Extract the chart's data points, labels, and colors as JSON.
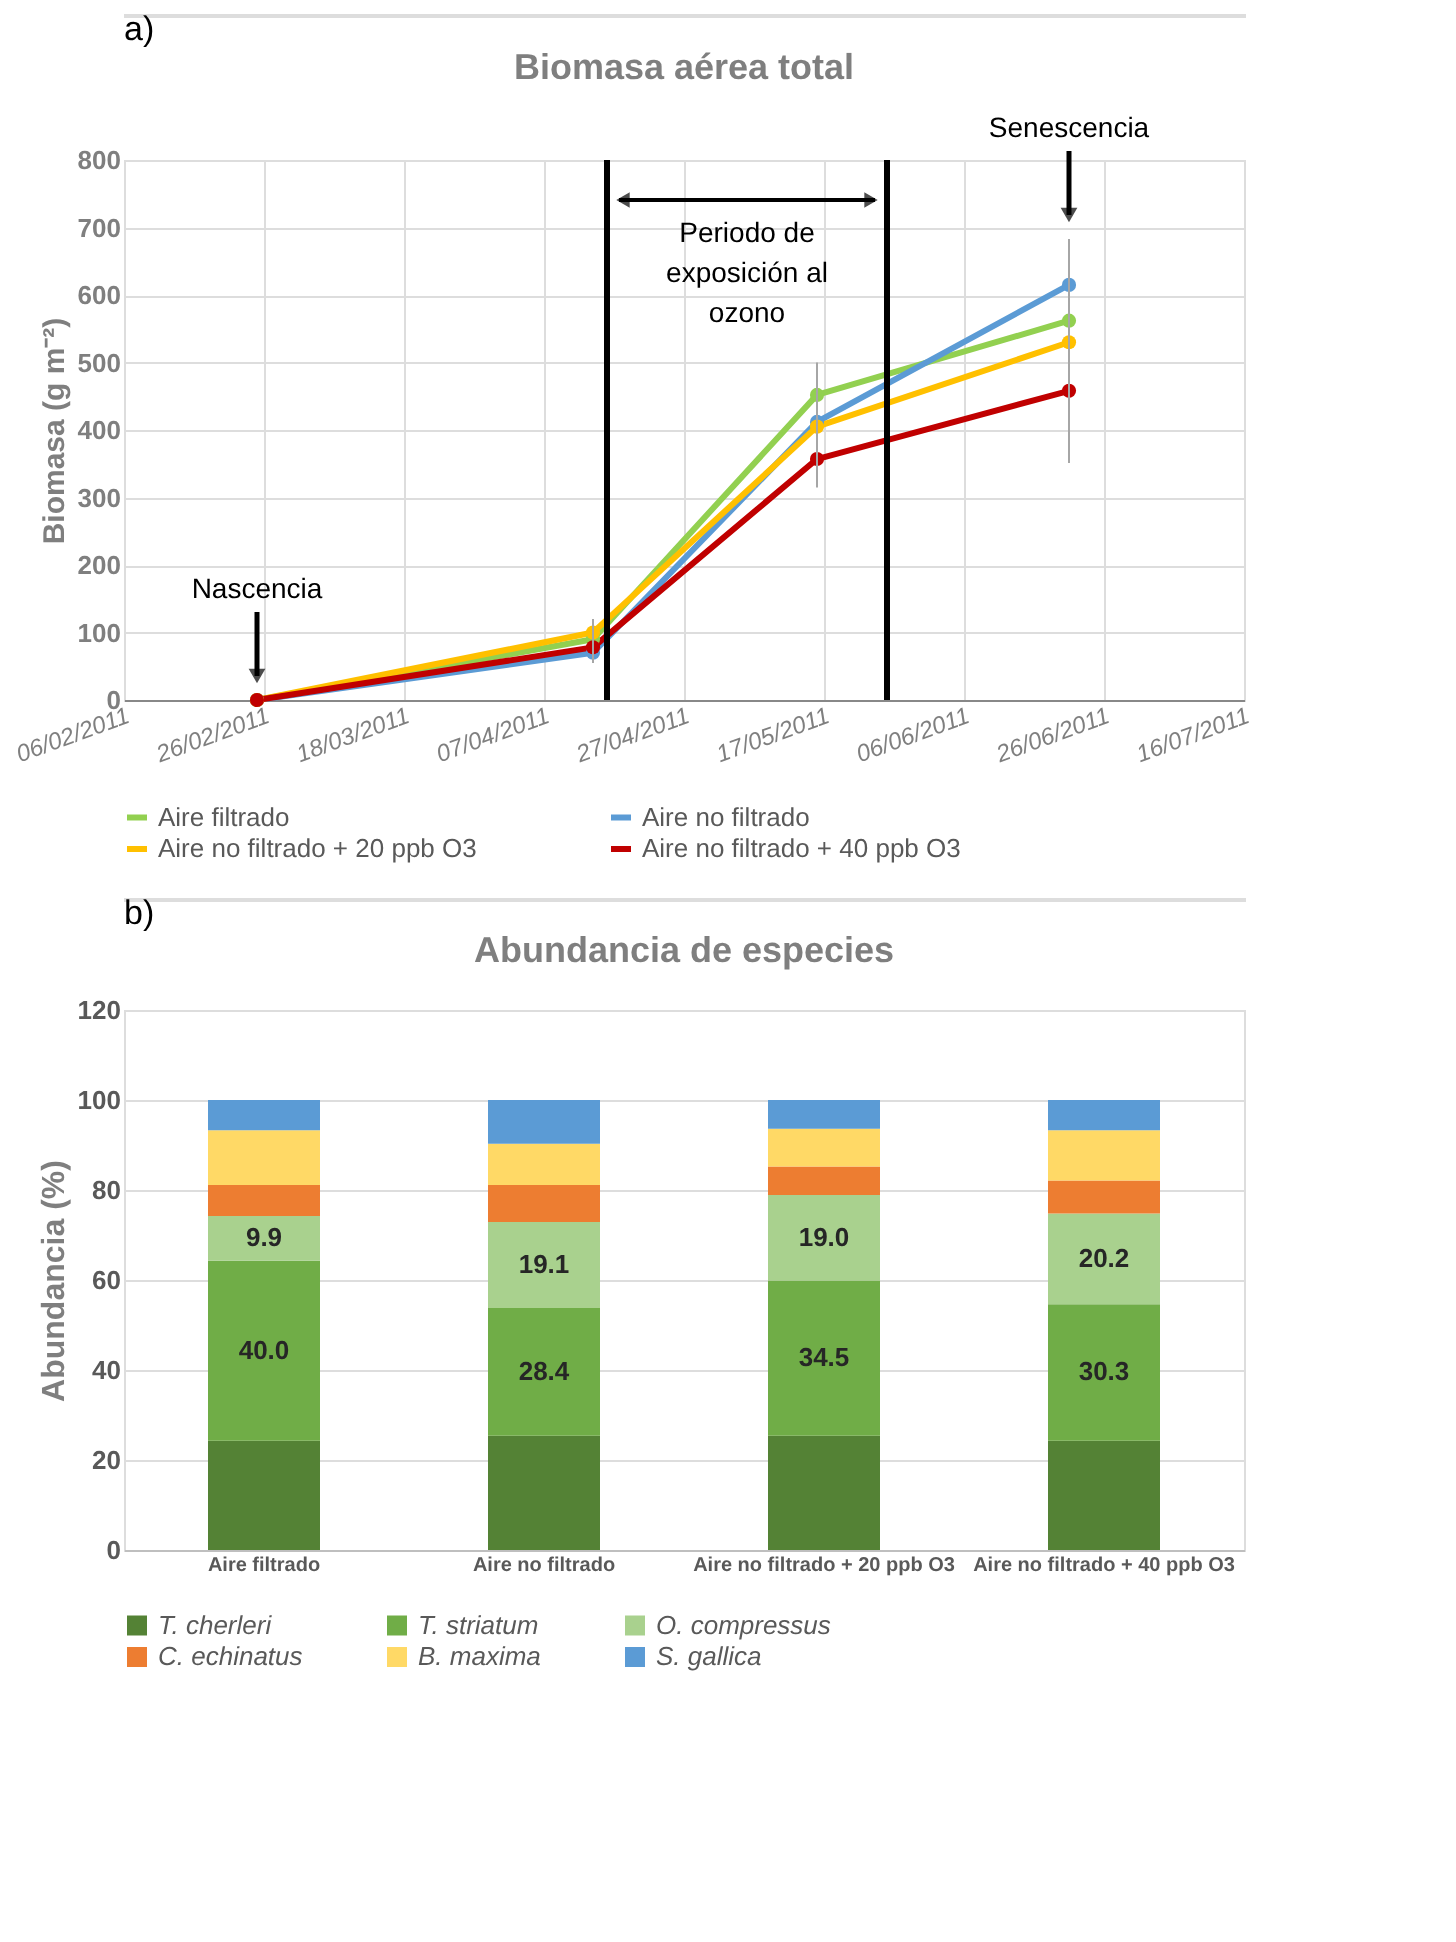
{
  "chart_data": [
    {
      "type": "line",
      "title": "Biomasa aérea total",
      "ylabel": "Biomasa (g m⁻²)",
      "x": [
        "2011-02-25",
        "2011-04-14",
        "2011-05-16",
        "2011-06-21"
      ],
      "series": [
        {
          "name": "Aire filtrado",
          "color": "#92d050",
          "values": [
            0,
            90,
            452,
            562
          ],
          "errors": [
            null,
            20,
            48,
            30
          ]
        },
        {
          "name": "Aire no filtrado",
          "color": "#5b9bd5",
          "values": [
            0,
            70,
            412,
            615
          ],
          "errors": [
            null,
            15,
            40,
            68
          ]
        },
        {
          "name": "Aire no filtrado + 20 ppb O3",
          "color": "#ffc000",
          "values": [
            0,
            100,
            405,
            530
          ],
          "errors": [
            null,
            20,
            35,
            50
          ]
        },
        {
          "name": "Aire no filtrado + 40 ppb O3",
          "color": "#c00000",
          "values": [
            0,
            78,
            357,
            458
          ],
          "errors": [
            null,
            15,
            42,
            107
          ]
        }
      ],
      "xlim": [
        "2011-02-06",
        "2011-07-16"
      ],
      "xticks": [
        {
          "value": "2011-02-06",
          "label": "06/02/2011"
        },
        {
          "value": "2011-02-26",
          "label": "26/02/2011"
        },
        {
          "value": "2011-03-18",
          "label": "18/03/2011"
        },
        {
          "value": "2011-04-07",
          "label": "07/04/2011"
        },
        {
          "value": "2011-04-27",
          "label": "27/04/2011"
        },
        {
          "value": "2011-05-17",
          "label": "17/05/2011"
        },
        {
          "value": "2011-06-06",
          "label": "06/06/2011"
        },
        {
          "value": "2011-06-26",
          "label": "26/06/2011"
        },
        {
          "value": "2011-07-16",
          "label": "16/07/2011"
        }
      ],
      "ylim": [
        0,
        800
      ],
      "yticks": [
        0,
        100,
        200,
        300,
        400,
        500,
        600,
        700,
        800
      ],
      "ref_lines": [
        {
          "axis": "x",
          "value": "2011-04-16",
          "color": "#000000"
        },
        {
          "axis": "x",
          "value": "2011-05-26",
          "color": "#000000"
        }
      ],
      "annotations": [
        "a)",
        "Nascencia",
        "Senescencia",
        "Periodo de exposición al ozono"
      ],
      "grid": true,
      "legend": "bottom",
      "marker": "circle",
      "line_style": "solid"
    },
    {
      "type": "bar",
      "stacked": true,
      "title": "Abundancia de especies",
      "ylabel": "Abundancia (%)",
      "categories": [
        "Aire filtrado",
        "Aire no filtrado",
        "Aire no filtrado + 20 ppb O3",
        "Aire no filtrado + 40 ppb O3"
      ],
      "series": [
        {
          "name": "T. cherleri",
          "color": "#548235",
          "values": [
            24.3,
            25.4,
            25.4,
            24.3
          ]
        },
        {
          "name": "T. striatum",
          "color": "#70ad47",
          "values": [
            40.0,
            28.4,
            34.5,
            30.3
          ],
          "value_labels": [
            "40.0",
            "28.4",
            "34.5",
            "30.3"
          ]
        },
        {
          "name": "O. compressus",
          "color": "#a9d18e",
          "values": [
            9.9,
            19.1,
            19.0,
            20.2
          ],
          "value_labels": [
            "9.9",
            "19.1",
            "19.0",
            "20.2"
          ]
        },
        {
          "name": "C. echinatus",
          "color": "#ed7d31",
          "values": [
            6.9,
            8.2,
            6.3,
            7.3
          ]
        },
        {
          "name": "B. maxima",
          "color": "#ffd966",
          "values": [
            12.2,
            9.2,
            8.4,
            11.2
          ]
        },
        {
          "name": "S. gallica",
          "color": "#5b9bd5",
          "values": [
            6.7,
            9.7,
            6.4,
            6.7
          ]
        }
      ],
      "ylim": [
        0,
        120
      ],
      "yticks": [
        0,
        20,
        40,
        60,
        80,
        100,
        120
      ],
      "annotations": [
        "b)"
      ],
      "grid": "y",
      "legend": "bottom"
    }
  ]
}
